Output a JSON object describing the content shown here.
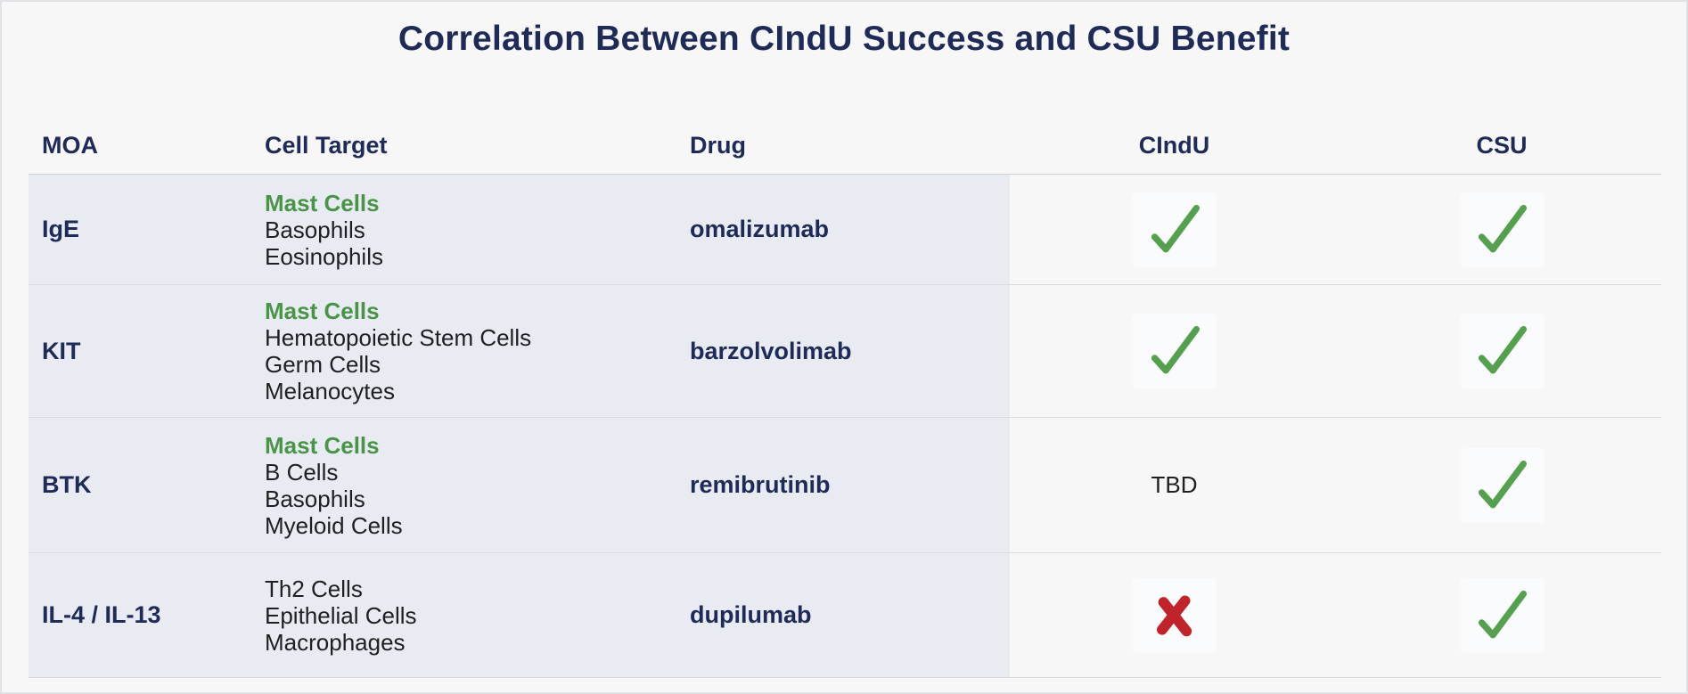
{
  "title": "Correlation Between CIndU Success and CSU Benefit",
  "colors": {
    "navy": "#1e2b57",
    "page_bg": "#f7f7f8",
    "frame": "#e0e2e5",
    "band": "#e8ebf1",
    "line": "#d9dadc",
    "line_dark": "#cfd1d4",
    "text": "#1f1f22",
    "green_text": "#4a9447",
    "check_green": "#55a04e",
    "cross_red": "#c0232a",
    "mark_bg": "#fafbfd"
  },
  "icons": {
    "check": "check-icon",
    "cross": "cross-icon"
  },
  "table": {
    "columns": [
      "MOA",
      "Cell Target",
      "Drug",
      "CIndU",
      "CSU"
    ],
    "rows": [
      {
        "moa": "IgE",
        "targets": [
          {
            "text": "Mast Cells",
            "highlight": true
          },
          {
            "text": "Basophils"
          },
          {
            "text": "Eosinophils"
          }
        ],
        "drug": "omalizumab",
        "cindu": "check",
        "csu": "check"
      },
      {
        "moa": "KIT",
        "targets": [
          {
            "text": "Mast Cells",
            "highlight": true
          },
          {
            "text": "Hematopoietic Stem Cells"
          },
          {
            "text": "Germ Cells"
          },
          {
            "text": "Melanocytes"
          }
        ],
        "drug": "barzolvolimab",
        "cindu": "check",
        "csu": "check"
      },
      {
        "moa": "BTK",
        "targets": [
          {
            "text": "Mast Cells",
            "highlight": true
          },
          {
            "text": "B Cells"
          },
          {
            "text": "Basophils"
          },
          {
            "text": "Myeloid Cells"
          }
        ],
        "drug": "remibrutinib",
        "cindu": "TBD",
        "csu": "check"
      },
      {
        "moa": "IL-4 / IL-13",
        "targets": [
          {
            "text": "Th2 Cells"
          },
          {
            "text": "Epithelial Cells"
          },
          {
            "text": "Macrophages"
          }
        ],
        "drug": "dupilumab",
        "cindu": "cross",
        "csu": "check"
      }
    ]
  },
  "chart_data": {
    "type": "table",
    "title": "Correlation Between CIndU Success and CSU Benefit",
    "columns": [
      "MOA",
      "Cell Target",
      "Drug",
      "CIndU",
      "CSU"
    ],
    "rows": [
      [
        "IgE",
        "Mast Cells; Basophils; Eosinophils",
        "omalizumab",
        "yes",
        "yes"
      ],
      [
        "KIT",
        "Mast Cells; Hematopoietic Stem Cells; Germ Cells; Melanocytes",
        "barzolvolimab",
        "yes",
        "yes"
      ],
      [
        "BTK",
        "Mast Cells; B Cells; Basophils; Myeloid Cells",
        "remibrutinib",
        "TBD",
        "yes"
      ],
      [
        "IL-4 / IL-13",
        "Th2 Cells; Epithelial Cells; Macrophages",
        "dupilumab",
        "no",
        "yes"
      ]
    ],
    "legend": {
      "check": "benefit shown",
      "cross": "no benefit",
      "TBD": "to be determined"
    },
    "layout": {
      "highlighted_cell_target": "Mast Cells",
      "band_columns": [
        "MOA",
        "Cell Target",
        "Drug"
      ]
    }
  }
}
